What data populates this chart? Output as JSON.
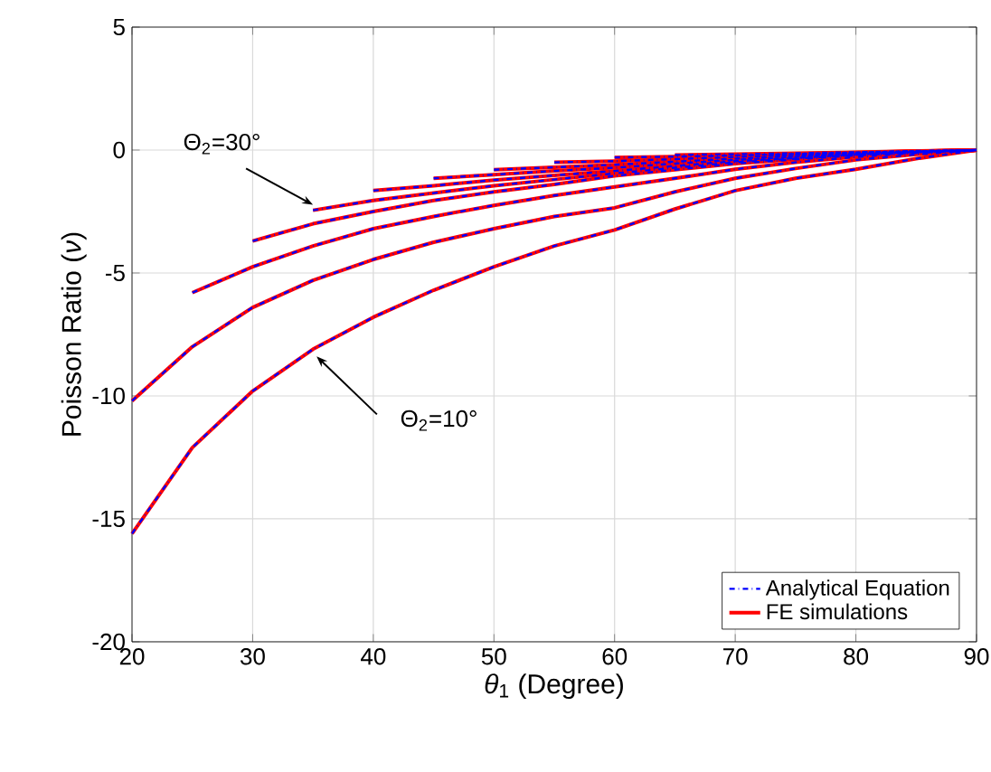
{
  "chart_data": {
    "type": "line",
    "xlabel": "*θ*$_{1}$ (Degree)",
    "ylabel": "Poisson Ratio (*ν*)",
    "xlim": [
      20,
      90
    ],
    "ylim": [
      -20,
      5
    ],
    "xticks": [
      20,
      30,
      40,
      50,
      60,
      70,
      80,
      90
    ],
    "yticks": [
      -20,
      -15,
      -10,
      -5,
      0,
      5
    ],
    "grid": true,
    "legend": "bottom right",
    "marker": "none",
    "annotations": [
      {
        "text": "Θ$_{2}$=30°",
        "x": 35,
        "y": -2.45
      },
      {
        "text": "Θ$_{2}$=10°",
        "x": 35,
        "y": -8.1
      }
    ],
    "series": [
      {
        "name": "Analytical Equation",
        "color": "#0000ff",
        "line_style": "dashed",
        "x": [
          20,
          25,
          30,
          35,
          40,
          45,
          50,
          55,
          60,
          65,
          70,
          75,
          80,
          85,
          90
        ],
        "values": [
          -15.6,
          -12.1,
          -9.8,
          -8.1,
          -6.8,
          -5.7,
          -4.75,
          -3.9,
          -3.25,
          -2.4,
          -1.65,
          -1.15,
          -0.78,
          -0.35,
          0
        ]
      },
      {
        "color": "#0000ff",
        "line_style": "dashed",
        "x": [
          20,
          25,
          30,
          35,
          40,
          45,
          50,
          55,
          60,
          65,
          70,
          75,
          80,
          85,
          90
        ],
        "values": [
          -10.2,
          -8.0,
          -6.4,
          -5.3,
          -4.45,
          -3.75,
          -3.2,
          -2.7,
          -2.35,
          -1.7,
          -1.15,
          -0.75,
          -0.4,
          -0.18,
          0
        ]
      },
      {
        "color": "#0000ff",
        "line_style": "dashed",
        "x": [
          25,
          30,
          35,
          40,
          45,
          50,
          55,
          60,
          65,
          70,
          75,
          80,
          85,
          90
        ],
        "values": [
          -5.8,
          -4.75,
          -3.9,
          -3.2,
          -2.7,
          -2.25,
          -1.85,
          -1.5,
          -1.15,
          -0.78,
          -0.5,
          -0.28,
          -0.12,
          0
        ]
      },
      {
        "color": "#0000ff",
        "line_style": "dashed",
        "x": [
          30,
          35,
          40,
          45,
          50,
          55,
          60,
          65,
          70,
          75,
          80,
          85,
          90
        ],
        "values": [
          -3.7,
          -3.0,
          -2.5,
          -2.05,
          -1.7,
          -1.4,
          -1.05,
          -0.8,
          -0.55,
          -0.38,
          -0.22,
          -0.1,
          0
        ]
      },
      {
        "color": "#0000ff",
        "line_style": "dashed",
        "x": [
          35,
          40,
          45,
          50,
          55,
          60,
          65,
          70,
          75,
          80,
          85,
          90
        ],
        "values": [
          -2.45,
          -2.05,
          -1.75,
          -1.45,
          -1.2,
          -0.95,
          -0.72,
          -0.5,
          -0.35,
          -0.2,
          -0.08,
          0
        ]
      },
      {
        "color": "#0000ff",
        "line_style": "dashed",
        "x": [
          40,
          45,
          50,
          55,
          60,
          65,
          70,
          75,
          80,
          85,
          90
        ],
        "values": [
          -1.65,
          -1.45,
          -1.22,
          -1.03,
          -0.85,
          -0.65,
          -0.45,
          -0.32,
          -0.18,
          -0.08,
          0
        ]
      },
      {
        "color": "#0000ff",
        "line_style": "dashed",
        "x": [
          45,
          50,
          55,
          60,
          65,
          70,
          75,
          80,
          85,
          90
        ],
        "values": [
          -1.15,
          -1.0,
          -0.85,
          -0.72,
          -0.55,
          -0.4,
          -0.28,
          -0.16,
          -0.07,
          0
        ]
      },
      {
        "color": "#0000ff",
        "line_style": "dashed",
        "x": [
          50,
          55,
          60,
          65,
          70,
          75,
          80,
          85,
          90
        ],
        "values": [
          -0.8,
          -0.7,
          -0.6,
          -0.47,
          -0.35,
          -0.24,
          -0.14,
          -0.06,
          0
        ]
      },
      {
        "color": "#0000ff",
        "line_style": "dashed",
        "x": [
          55,
          60,
          65,
          70,
          75,
          80,
          85,
          90
        ],
        "values": [
          -0.5,
          -0.45,
          -0.37,
          -0.28,
          -0.2,
          -0.12,
          -0.05,
          0
        ]
      },
      {
        "color": "#0000ff",
        "line_style": "dashed",
        "x": [
          60,
          65,
          70,
          75,
          80,
          85,
          90
        ],
        "values": [
          -0.3,
          -0.27,
          -0.22,
          -0.16,
          -0.1,
          -0.05,
          0
        ]
      },
      {
        "color": "#0000ff",
        "line_style": "dashed",
        "x": [
          65,
          70,
          75,
          80,
          85,
          90
        ],
        "values": [
          -0.2,
          -0.17,
          -0.13,
          -0.09,
          -0.04,
          0
        ]
      },
      {
        "name": "FE simulations",
        "color": "#ff0000",
        "line_style": "solid",
        "x": [
          20,
          25,
          30,
          35,
          40,
          45,
          50,
          55,
          60,
          65,
          70,
          75,
          80,
          85,
          90
        ],
        "values": [
          -15.6,
          -12.1,
          -9.8,
          -8.1,
          -6.8,
          -5.7,
          -4.75,
          -3.9,
          -3.25,
          -2.4,
          -1.65,
          -1.15,
          -0.78,
          -0.35,
          0
        ]
      },
      {
        "color": "#ff0000",
        "line_style": "solid",
        "x": [
          20,
          25,
          30,
          35,
          40,
          45,
          50,
          55,
          60,
          65,
          70,
          75,
          80,
          85,
          90
        ],
        "values": [
          -10.2,
          -8.0,
          -6.4,
          -5.3,
          -4.45,
          -3.75,
          -3.2,
          -2.7,
          -2.35,
          -1.7,
          -1.15,
          -0.75,
          -0.4,
          -0.18,
          0
        ]
      },
      {
        "color": "#ff0000",
        "line_style": "solid",
        "x": [
          25,
          30,
          35,
          40,
          45,
          50,
          55,
          60,
          65,
          70,
          75,
          80,
          85,
          90
        ],
        "values": [
          -5.8,
          -4.75,
          -3.9,
          -3.2,
          -2.7,
          -2.25,
          -1.85,
          -1.5,
          -1.15,
          -0.78,
          -0.5,
          -0.28,
          -0.12,
          0
        ]
      },
      {
        "color": "#ff0000",
        "line_style": "solid",
        "x": [
          30,
          35,
          40,
          45,
          50,
          55,
          60,
          65,
          70,
          75,
          80,
          85,
          90
        ],
        "values": [
          -3.7,
          -3.0,
          -2.5,
          -2.05,
          -1.7,
          -1.4,
          -1.05,
          -0.8,
          -0.55,
          -0.38,
          -0.22,
          -0.1,
          0
        ]
      },
      {
        "color": "#ff0000",
        "line_style": "solid",
        "x": [
          35,
          40,
          45,
          50,
          55,
          60,
          65,
          70,
          75,
          80,
          85,
          90
        ],
        "values": [
          -2.45,
          -2.05,
          -1.75,
          -1.45,
          -1.2,
          -0.95,
          -0.72,
          -0.5,
          -0.35,
          -0.2,
          -0.08,
          0
        ]
      },
      {
        "color": "#ff0000",
        "line_style": "solid",
        "x": [
          40,
          45,
          50,
          55,
          60,
          65,
          70,
          75,
          80,
          85,
          90
        ],
        "values": [
          -1.65,
          -1.45,
          -1.22,
          -1.03,
          -0.85,
          -0.65,
          -0.45,
          -0.32,
          -0.18,
          -0.08,
          0
        ]
      },
      {
        "color": "#ff0000",
        "line_style": "solid",
        "x": [
          45,
          50,
          55,
          60,
          65,
          70,
          75,
          80,
          85,
          90
        ],
        "values": [
          -1.15,
          -1.0,
          -0.85,
          -0.72,
          -0.55,
          -0.4,
          -0.28,
          -0.16,
          -0.07,
          0
        ]
      },
      {
        "color": "#ff0000",
        "line_style": "solid",
        "x": [
          50,
          55,
          60,
          65,
          70,
          75,
          80,
          85,
          90
        ],
        "values": [
          -0.8,
          -0.7,
          -0.6,
          -0.47,
          -0.35,
          -0.24,
          -0.14,
          -0.06,
          0
        ]
      },
      {
        "color": "#ff0000",
        "line_style": "solid",
        "x": [
          55,
          60,
          65,
          70,
          75,
          80,
          85,
          90
        ],
        "values": [
          -0.5,
          -0.45,
          -0.37,
          -0.28,
          -0.2,
          -0.12,
          -0.05,
          0
        ]
      },
      {
        "color": "#ff0000",
        "line_style": "solid",
        "x": [
          60,
          65,
          70,
          75,
          80,
          85,
          90
        ],
        "values": [
          -0.3,
          -0.27,
          -0.22,
          -0.16,
          -0.1,
          -0.05,
          0
        ]
      },
      {
        "color": "#ff0000",
        "line_style": "solid",
        "x": [
          65,
          70,
          75,
          80,
          85,
          90
        ],
        "values": [
          -0.2,
          -0.17,
          -0.13,
          -0.09,
          -0.04,
          0
        ]
      }
    ]
  }
}
